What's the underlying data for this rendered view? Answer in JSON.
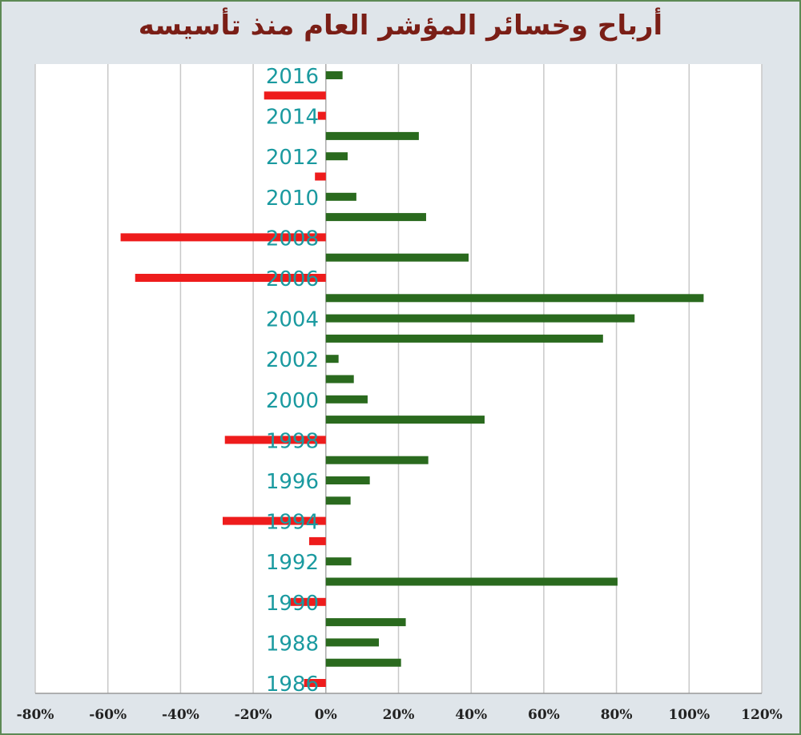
{
  "chart_data": {
    "type": "bar",
    "orientation": "horizontal",
    "title": "أرباح وخسائر المؤشر العام منذ تأسيسه",
    "xlabel": "",
    "ylabel": "",
    "xlim": [
      -80,
      120
    ],
    "x_ticks": [
      "-80%",
      "-60%",
      "-40%",
      "-20%",
      "0%",
      "20%",
      "40%",
      "60%",
      "80%",
      "100%",
      "120%"
    ],
    "grid": true,
    "categories": [
      2016,
      2015,
      2014,
      2013,
      2012,
      2011,
      2010,
      2009,
      2008,
      2007,
      2006,
      2005,
      2004,
      2003,
      2002,
      2001,
      2000,
      1999,
      1998,
      1997,
      1996,
      1995,
      1994,
      1993,
      1992,
      1991,
      1990,
      1989,
      1988,
      1987,
      1986
    ],
    "category_labels": [
      "2016",
      "2014",
      "2012",
      "2010",
      "2008",
      "2006",
      "2004",
      "2002",
      "2000",
      "1998",
      "1996",
      "1994",
      "1992",
      "1990",
      "1988",
      "1986"
    ],
    "values": [
      4.6,
      -17,
      -2.2,
      25.6,
      6,
      -3,
      8.4,
      27.6,
      -56.5,
      39.3,
      -52.5,
      104,
      85,
      76.3,
      3.5,
      7.7,
      11.5,
      43.7,
      -27.8,
      28.2,
      12.1,
      6.8,
      -28.4,
      -4.6,
      7,
      80.3,
      -9.7,
      22,
      14.6,
      20.7,
      -6
    ],
    "colors": {
      "positive": "#2a6a1e",
      "negative": "#ee1c1c",
      "year_label": "#1a9aa0",
      "title": "#7a1e16"
    }
  }
}
